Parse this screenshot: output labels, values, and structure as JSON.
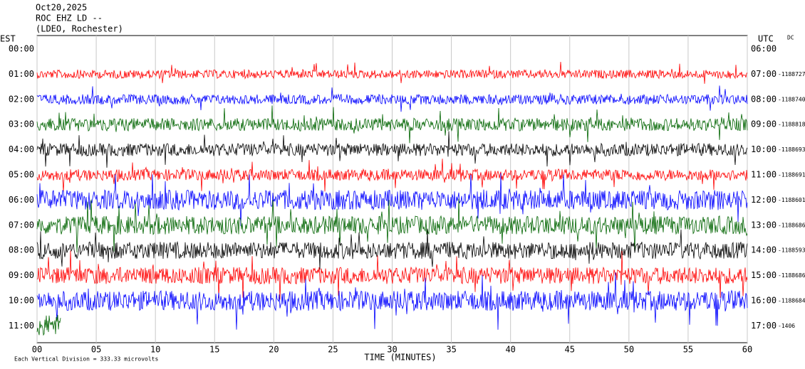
{
  "chart_data": {
    "type": "helicorder",
    "title": "Oct20,2025",
    "station": "ROC EHZ LD --",
    "network": "(LDEO, Rochester)",
    "left_axis_label": "EST",
    "right_axis_label": "UTC",
    "corner_label": "DC",
    "xlabel": "TIME (MINUTES)",
    "scale_note": "Each Vertical Division = 333.33 microvolts",
    "xlim": [
      0,
      60
    ],
    "xticks": [
      {
        "value": 0,
        "label": "00"
      },
      {
        "value": 5,
        "label": "05"
      },
      10,
      15,
      20,
      25,
      30,
      35,
      40,
      45,
      50,
      55,
      60
    ],
    "grid": true,
    "rows": [
      {
        "est": "00:00",
        "utc": "06:00",
        "offset": null,
        "color": "#000000"
      },
      {
        "est": "01:00",
        "utc": "07:00",
        "offset": "-1188727",
        "color": "#ff0000"
      },
      {
        "est": "02:00",
        "utc": "08:00",
        "offset": "-1188740",
        "color": "#0000ff"
      },
      {
        "est": "03:00",
        "utc": "09:00",
        "offset": "-1188818",
        "color": "#006400"
      },
      {
        "est": "04:00",
        "utc": "10:00",
        "offset": "-1188693",
        "color": "#000000"
      },
      {
        "est": "05:00",
        "utc": "11:00",
        "offset": "-1188691",
        "color": "#ff0000"
      },
      {
        "est": "06:00",
        "utc": "12:00",
        "offset": "-1188601",
        "color": "#0000ff"
      },
      {
        "est": "07:00",
        "utc": "13:00",
        "offset": "-1188686",
        "color": "#006400"
      },
      {
        "est": "08:00",
        "utc": "14:00",
        "offset": "-1188593",
        "color": "#000000"
      },
      {
        "est": "09:00",
        "utc": "15:00",
        "offset": "-1188686",
        "color": "#ff0000"
      },
      {
        "est": "10:00",
        "utc": "16:00",
        "offset": "-1188684",
        "color": "#0000ff"
      },
      {
        "est": "11:00",
        "utc": "17:00",
        "offset": "-1406",
        "color": "#006400"
      }
    ]
  }
}
